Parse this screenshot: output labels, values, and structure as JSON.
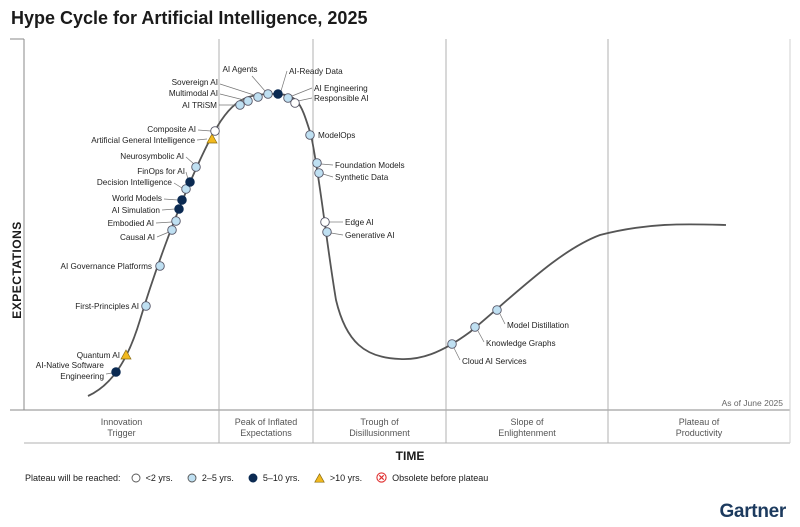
{
  "title": "Hype Cycle for Artificial Intelligence, 2025",
  "chart_data": {
    "type": "scatter",
    "title": "Hype Cycle for Artificial Intelligence, 2025",
    "xlabel": "TIME",
    "ylabel": "EXPECTATIONS",
    "as_of": "As of June 2025",
    "phases": [
      "Innovation Trigger",
      "Peak of Inflated Expectations",
      "Trough of Disillusionment",
      "Slope of Enlightenment",
      "Plateau of Productivity"
    ],
    "legend_title": "Plateau will be reached:",
    "legend": [
      {
        "key": "lt2",
        "label": "<2 yrs.",
        "shape": "circle",
        "color": "#ffffff"
      },
      {
        "key": "2to5",
        "label": "2–5 yrs.",
        "shape": "circle",
        "color": "#bfe0f2"
      },
      {
        "key": "5to10",
        "label": "5–10 yrs.",
        "shape": "circle",
        "color": "#0b2a52"
      },
      {
        "key": "gt10",
        "label": ">10 yrs.",
        "shape": "triangle",
        "color": "#f2b91e"
      },
      {
        "key": "obsolete",
        "label": "Obsolete before plateau",
        "shape": "x-circle",
        "color": "#e03030"
      }
    ],
    "points": [
      {
        "label": "AI-Native Software Engineering",
        "phase": "Innovation Trigger",
        "plateau": "5to10"
      },
      {
        "label": "Quantum AI",
        "phase": "Innovation Trigger",
        "plateau": "gt10"
      },
      {
        "label": "First-Principles AI",
        "phase": "Innovation Trigger",
        "plateau": "2to5"
      },
      {
        "label": "AI Governance Platforms",
        "phase": "Innovation Trigger",
        "plateau": "2to5"
      },
      {
        "label": "Causal AI",
        "phase": "Innovation Trigger",
        "plateau": "2to5"
      },
      {
        "label": "Embodied AI",
        "phase": "Innovation Trigger",
        "plateau": "2to5"
      },
      {
        "label": "AI Simulation",
        "phase": "Innovation Trigger",
        "plateau": "5to10"
      },
      {
        "label": "World Models",
        "phase": "Innovation Trigger",
        "plateau": "5to10"
      },
      {
        "label": "Decision Intelligence",
        "phase": "Innovation Trigger",
        "plateau": "2to5"
      },
      {
        "label": "FinOps for AI",
        "phase": "Innovation Trigger",
        "plateau": "5to10"
      },
      {
        "label": "Neurosymbolic AI",
        "phase": "Innovation Trigger",
        "plateau": "2to5"
      },
      {
        "label": "Artificial General Intelligence",
        "phase": "Innovation Trigger",
        "plateau": "gt10"
      },
      {
        "label": "Composite AI",
        "phase": "Innovation Trigger",
        "plateau": "lt2"
      },
      {
        "label": "AI TRiSM",
        "phase": "Peak of Inflated Expectations",
        "plateau": "2to5"
      },
      {
        "label": "Multimodal AI",
        "phase": "Peak of Inflated Expectations",
        "plateau": "2to5"
      },
      {
        "label": "Sovereign AI",
        "phase": "Peak of Inflated Expectations",
        "plateau": "2to5"
      },
      {
        "label": "AI Agents",
        "phase": "Peak of Inflated Expectations",
        "plateau": "2to5"
      },
      {
        "label": "AI-Ready Data",
        "phase": "Peak of Inflated Expectations",
        "plateau": "5to10"
      },
      {
        "label": "AI Engineering",
        "phase": "Peak of Inflated Expectations",
        "plateau": "2to5"
      },
      {
        "label": "Responsible AI",
        "phase": "Peak of Inflated Expectations",
        "plateau": "lt2"
      },
      {
        "label": "ModelOps",
        "phase": "Trough of Disillusionment",
        "plateau": "2to5"
      },
      {
        "label": "Foundation Models",
        "phase": "Trough of Disillusionment",
        "plateau": "2to5"
      },
      {
        "label": "Synthetic Data",
        "phase": "Trough of Disillusionment",
        "plateau": "2to5"
      },
      {
        "label": "Edge AI",
        "phase": "Trough of Disillusionment",
        "plateau": "lt2"
      },
      {
        "label": "Generative AI",
        "phase": "Trough of Disillusionment",
        "plateau": "2to5"
      },
      {
        "label": "Cloud AI Services",
        "phase": "Slope of Enlightenment",
        "plateau": "2to5"
      },
      {
        "label": "Knowledge Graphs",
        "phase": "Slope of Enlightenment",
        "plateau": "2to5"
      },
      {
        "label": "Model Distillation",
        "phase": "Slope of Enlightenment",
        "plateau": "2to5"
      }
    ]
  },
  "footer": {
    "logo": "Gartner"
  }
}
